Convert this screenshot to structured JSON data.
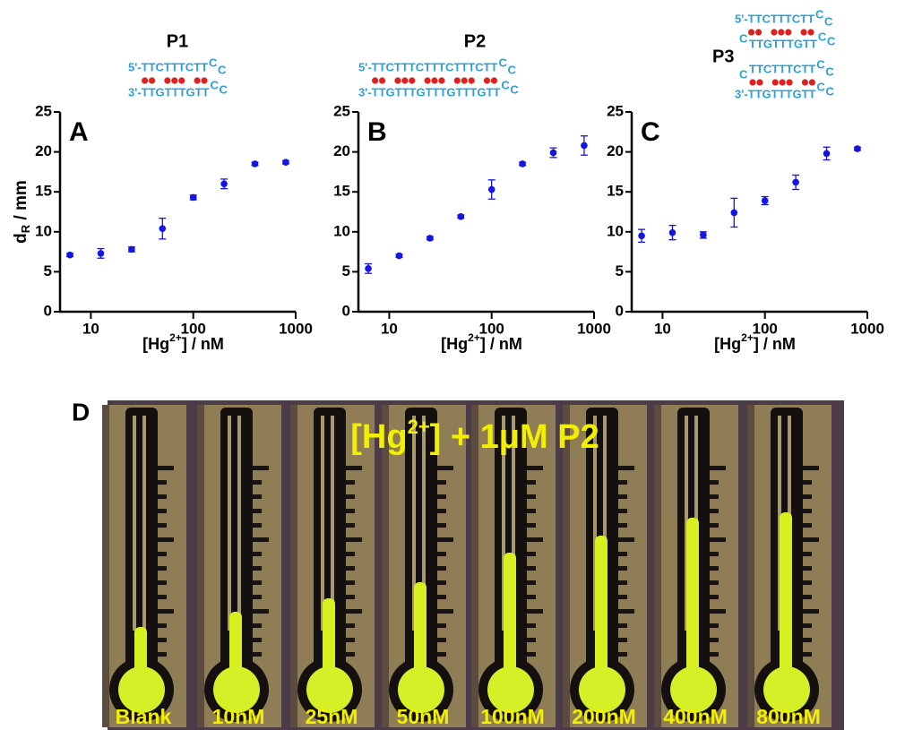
{
  "chart_data": [
    {
      "type": "scatter",
      "panel": "A",
      "title": "P1",
      "hairpin": [
        {
          "text": "5'-TTCTTTCTT",
          "loop": [
            "C",
            "C"
          ]
        },
        {
          "text": "3'-TTGTTTGTT",
          "loop": [
            "C",
            "C"
          ]
        }
      ],
      "xlabel": [
        "[Hg",
        "2+",
        "] / nM"
      ],
      "ylabel": [
        "d",
        "R",
        " / mm"
      ],
      "xscale": "log",
      "xlim": [
        5,
        1000
      ],
      "xticks": [
        10,
        100,
        1000
      ],
      "ylim": [
        0,
        25
      ],
      "yticks": [
        0,
        5,
        10,
        15,
        20,
        25
      ],
      "series": [
        {
          "color": "#1414e6",
          "x": [
            6.25,
            12.5,
            25,
            50,
            100,
            200,
            400,
            800
          ],
          "values": [
            7.1,
            7.3,
            7.8,
            10.4,
            14.3,
            16.0,
            18.5,
            18.7
          ],
          "errors": [
            0.2,
            0.6,
            0.3,
            1.3,
            0.3,
            0.6,
            0.2,
            0.2
          ]
        }
      ]
    },
    {
      "type": "scatter",
      "panel": "B",
      "title": "P2",
      "hairpin": [
        {
          "text": "5'-TTCTTTCTTTCTTTCTT",
          "loop": [
            "C",
            "C"
          ]
        },
        {
          "text": "3'-TTGTTTGTTTGTTTGTT",
          "loop": [
            "C",
            "C"
          ]
        }
      ],
      "xlabel": [
        "[Hg",
        "2+",
        "] / nM"
      ],
      "xscale": "log",
      "xlim": [
        5,
        1000
      ],
      "xticks": [
        10,
        100,
        1000
      ],
      "ylim": [
        0,
        25
      ],
      "yticks": [
        0,
        5,
        10,
        15,
        20,
        25
      ],
      "series": [
        {
          "color": "#1414e6",
          "x": [
            6.25,
            12.5,
            25,
            50,
            100,
            200,
            400,
            800
          ],
          "values": [
            5.4,
            7.0,
            9.2,
            11.9,
            15.3,
            18.5,
            19.9,
            20.8
          ],
          "errors": [
            0.6,
            0.2,
            0.2,
            0.2,
            1.2,
            0.2,
            0.6,
            1.2
          ]
        }
      ]
    },
    {
      "type": "scatter",
      "panel": "C",
      "title": "P3",
      "hairpin": [
        {
          "text": "5'-TTCTTTCTT",
          "loop": [
            "C",
            "C"
          ]
        },
        {
          "lead": "C",
          "text": "TTGTTTGTT",
          "loop": [
            "C",
            "C"
          ]
        },
        {
          "lead": "C",
          "text": "TTCTTTCTT",
          "loop": [
            "C",
            "C"
          ]
        },
        {
          "text": "3'-TTGTTTGTT",
          "loop": [
            "C",
            "C"
          ]
        }
      ],
      "xlabel": [
        "[Hg",
        "2+",
        "] / nM"
      ],
      "xscale": "log",
      "xlim": [
        5,
        1000
      ],
      "xticks": [
        10,
        100,
        1000
      ],
      "ylim": [
        0,
        25
      ],
      "yticks": [
        0,
        5,
        10,
        15,
        20,
        25
      ],
      "series": [
        {
          "color": "#1414e6",
          "x": [
            6.25,
            12.5,
            25,
            50,
            100,
            200,
            400,
            800
          ],
          "values": [
            9.5,
            9.9,
            9.6,
            12.4,
            13.9,
            16.2,
            19.8,
            20.4
          ],
          "errors": [
            0.8,
            0.9,
            0.4,
            1.8,
            0.5,
            0.9,
            0.8,
            0.2
          ]
        }
      ]
    }
  ],
  "photo": {
    "panel": "D",
    "title": [
      "[Hg",
      "2+",
      "] + 1μM P2"
    ],
    "labels": [
      "Blank",
      "10nM",
      "25nM",
      "50nM",
      "100nM",
      "200nM",
      "400nM",
      "800nM"
    ]
  }
}
